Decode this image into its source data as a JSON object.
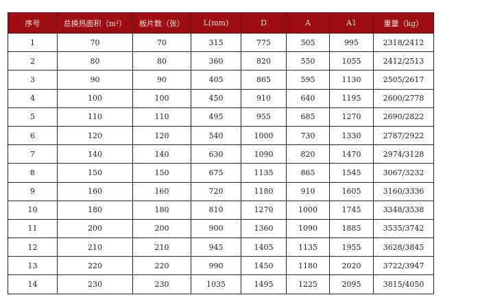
{
  "colors": {
    "header_bg": "#9e0d12",
    "header_text": "#f3dede"
  },
  "table": {
    "headers": [
      "序号",
      "总换热面积（m²）",
      "板片数（张）",
      "L(mm)",
      "D",
      "A",
      "A1",
      "重量（kg）"
    ],
    "rows": [
      [
        "1",
        "70",
        "70",
        "315",
        "775",
        "505",
        "995",
        "2318/2412"
      ],
      [
        "2",
        "80",
        "80",
        "360",
        "820",
        "550",
        "1055",
        "2412/2513"
      ],
      [
        "3",
        "90",
        "90",
        "405",
        "865",
        "595",
        "1130",
        "2505/2617"
      ],
      [
        "4",
        "100",
        "100",
        "450",
        "910",
        "640",
        "1195",
        "2600/2778"
      ],
      [
        "5",
        "110",
        "110",
        "495",
        "955",
        "685",
        "1270",
        "2690/2822"
      ],
      [
        "6",
        "120",
        "120",
        "540",
        "1000",
        "730",
        "1330",
        "2787/2922"
      ],
      [
        "7",
        "140",
        "140",
        "630",
        "1090",
        "820",
        "1470",
        "2974/3128"
      ],
      [
        "8",
        "150",
        "150",
        "675",
        "1135",
        "865",
        "1545",
        "3067/3232"
      ],
      [
        "9",
        "160",
        "160",
        "720",
        "1180",
        "910",
        "1605",
        "3160/3336"
      ],
      [
        "10",
        "180",
        "180",
        "810",
        "1270",
        "1000",
        "1745",
        "3348/3538"
      ],
      [
        "11",
        "200",
        "200",
        "900",
        "1360",
        "1090",
        "1885",
        "3535/3742"
      ],
      [
        "12",
        "210",
        "210",
        "945",
        "1405",
        "1135",
        "1955",
        "3628/3845"
      ],
      [
        "13",
        "220",
        "220",
        "990",
        "1450",
        "1180",
        "2020",
        "3722/3947"
      ],
      [
        "14",
        "230",
        "230",
        "1035",
        "1495",
        "1225",
        "2095",
        "3815/4050"
      ]
    ]
  }
}
